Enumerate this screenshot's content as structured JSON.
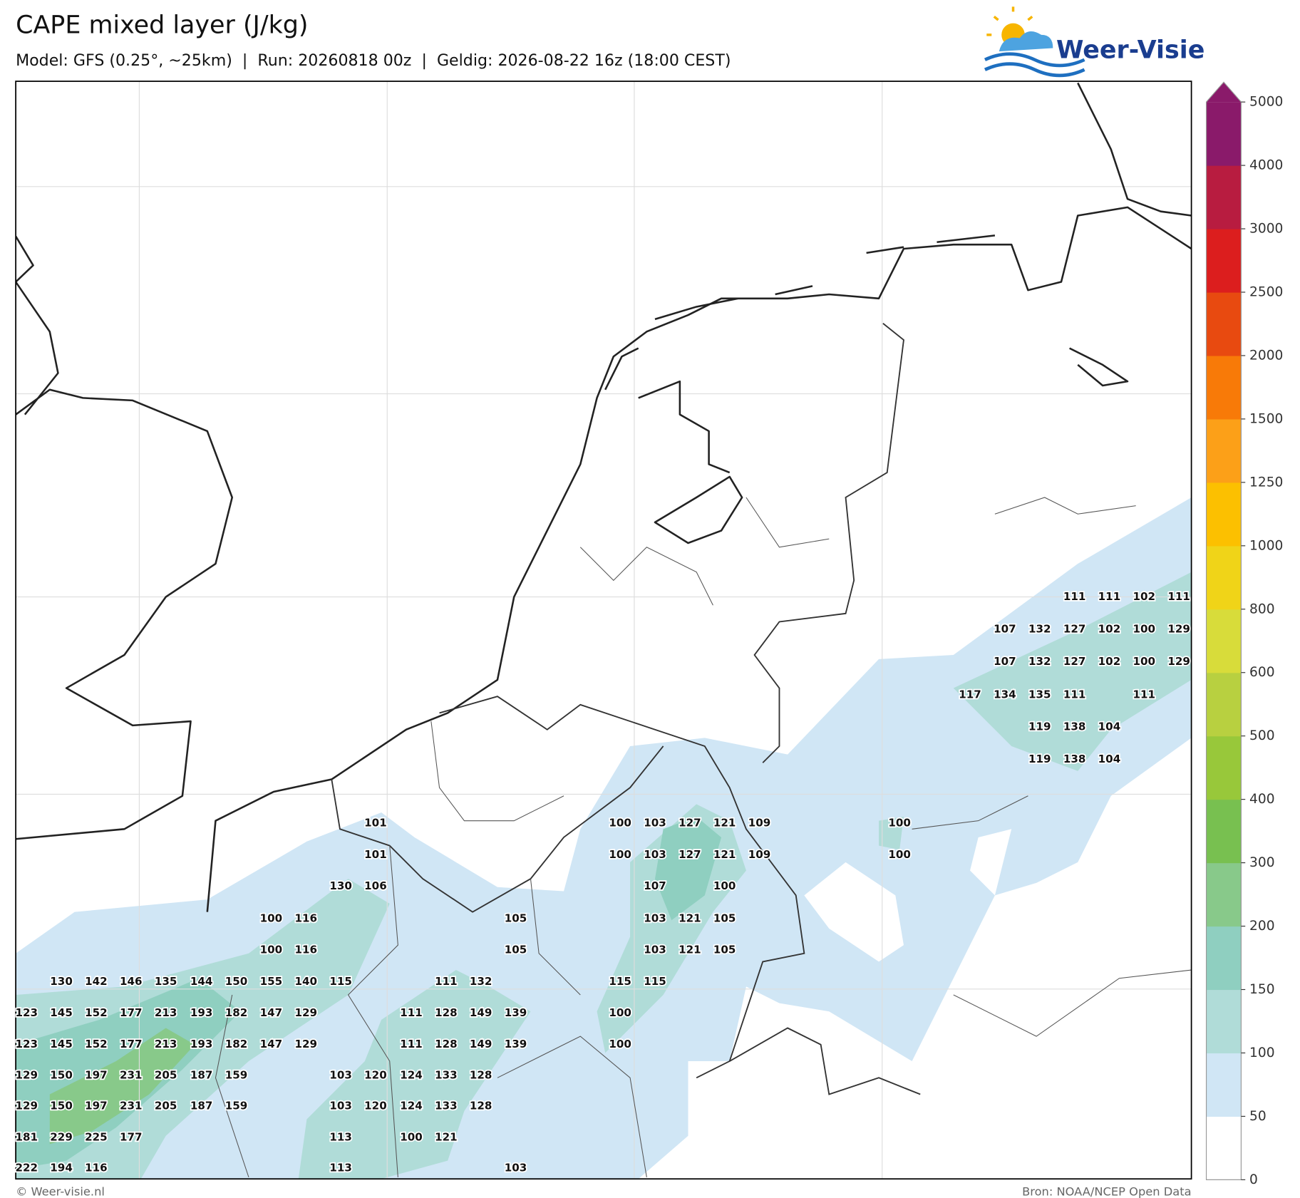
{
  "header": {
    "title": "CAPE mixed layer (J/kg)",
    "subtitle": "Model: GFS (0.25°, ~25km)  |  Run: 20260818 00z  |  Geldig: 2026-08-22 16z (18:00 CEST)",
    "logo": "Weer-Visie"
  },
  "map": {
    "value_rows": [
      [
        111,
        111,
        102,
        111
      ],
      [
        107,
        132,
        127,
        102,
        100,
        129
      ],
      [
        107,
        132,
        127,
        102,
        100,
        129
      ],
      [
        117,
        134,
        135,
        111,
        111
      ],
      [
        119,
        138,
        104
      ],
      [
        119,
        138,
        104
      ],
      [
        101,
        100,
        103,
        127,
        121,
        109,
        100
      ],
      [
        101,
        100,
        103,
        127,
        121,
        109,
        100
      ],
      [
        130,
        106,
        107,
        100
      ],
      [
        100,
        116,
        105,
        103,
        121,
        105
      ],
      [
        100,
        116,
        105,
        103,
        121,
        105
      ],
      [
        130,
        142,
        146,
        135,
        144,
        150,
        155,
        140,
        115,
        111,
        132,
        115,
        115
      ],
      [
        123,
        145,
        152,
        177,
        213,
        193,
        182,
        147,
        129,
        111,
        128,
        149,
        139,
        100
      ],
      [
        123,
        145,
        152,
        177,
        213,
        193,
        182,
        147,
        129,
        111,
        128,
        149,
        139,
        100
      ],
      [
        129,
        150,
        197,
        231,
        205,
        187,
        159,
        103,
        120,
        124,
        133,
        128
      ],
      [
        129,
        150,
        197,
        231,
        205,
        187,
        159,
        103,
        120,
        124,
        133,
        128
      ],
      [
        181,
        229,
        225,
        177,
        113,
        100,
        121
      ],
      [
        222,
        194,
        116,
        113,
        103
      ]
    ]
  },
  "colorbar": {
    "ticks": [
      0,
      50,
      100,
      150,
      200,
      300,
      400,
      500,
      600,
      800,
      1000,
      1250,
      1500,
      2000,
      2500,
      3000,
      4000,
      5000
    ],
    "colors": [
      "#ffffff",
      "#d0e6f5",
      "#b0dcd8",
      "#8fcfc0",
      "#88c98a",
      "#78c050",
      "#98c83a",
      "#b8d040",
      "#d8dc3a",
      "#f0d418",
      "#fcc000",
      "#fca018",
      "#f87a08",
      "#e84a10",
      "#dc1e1e",
      "#b81c40",
      "#8a1a6a"
    ]
  },
  "footer": {
    "left": "© Weer-visie.nl",
    "right": "Bron: NOAA/NCEP Open Data"
  }
}
